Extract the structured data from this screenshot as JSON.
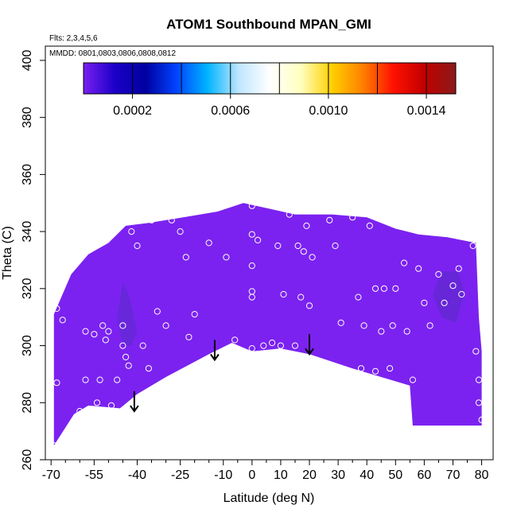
{
  "chart_data": {
    "type": "heatmap",
    "title": "ATOM1 Southbound MPAN_GMI",
    "subtitle_lines": [
      "Flts: 2,3,4,5,6",
      "MMDD: 0801,0803,0806,0808,0812"
    ],
    "xlabel": "Latitude (deg N)",
    "ylabel": "Theta (C)",
    "xlim": [
      -72,
      84
    ],
    "ylim": [
      260,
      405
    ],
    "x_ticks": [
      -70,
      -55,
      -40,
      -25,
      -10,
      0,
      10,
      20,
      30,
      40,
      50,
      60,
      70,
      80
    ],
    "x_minor_ticks": [
      -65,
      -60,
      -50,
      -45,
      -35,
      -30,
      -20,
      -15,
      -5,
      5,
      15,
      25,
      35,
      45,
      55,
      65,
      75
    ],
    "y_ticks": [
      260,
      280,
      300,
      320,
      340,
      360,
      380,
      400
    ],
    "colorbar": {
      "range": [
        0.0,
        0.00152
      ],
      "ticks": [
        "0.0002",
        "0.0006",
        "0.0010",
        "0.0014"
      ],
      "tick_values": [
        0.0002,
        0.0006,
        0.001,
        0.0014
      ],
      "segment_edges": [
        0.0002,
        0.0004,
        0.0006,
        0.0008,
        0.001,
        0.0012,
        0.0014
      ],
      "colors": [
        "#7a1ff0",
        "#1c00c8",
        "#0000a0",
        "#0044ff",
        "#00b4ff",
        "#bfe6ff",
        "#ffffff",
        "#ffffc0",
        "#ffd000",
        "#ff8000",
        "#ff1000",
        "#c00000",
        "#8b1a1a"
      ]
    },
    "field_color": "#7b22f0",
    "field_dark_color": "#5a2bc8",
    "field_boundary": {
      "upper": [
        [
          -69,
          311
        ],
        [
          -63,
          325
        ],
        [
          -57,
          332
        ],
        [
          -50,
          336
        ],
        [
          -44,
          342
        ],
        [
          -36,
          343
        ],
        [
          -24,
          345
        ],
        [
          -12,
          347
        ],
        [
          -3,
          350
        ],
        [
          6,
          348
        ],
        [
          15,
          346
        ],
        [
          28,
          346
        ],
        [
          40,
          345
        ],
        [
          50,
          341
        ],
        [
          58,
          339
        ],
        [
          68,
          338
        ],
        [
          78,
          336
        ],
        [
          79,
          310
        ],
        [
          80,
          298
        ]
      ],
      "lower": [
        [
          80,
          272
        ],
        [
          56,
          272
        ],
        [
          55,
          286
        ],
        [
          35,
          292
        ],
        [
          20,
          297
        ],
        [
          10,
          299
        ],
        [
          0,
          298
        ],
        [
          -7,
          301
        ],
        [
          -15,
          297
        ],
        [
          -30,
          289
        ],
        [
          -40,
          283
        ],
        [
          -46,
          278
        ],
        [
          -57,
          279
        ],
        [
          -62,
          276
        ],
        [
          -69,
          265
        ]
      ]
    },
    "sample_points": [
      [
        -69,
        265
      ],
      [
        -68,
        287
      ],
      [
        -68,
        313
      ],
      [
        -66,
        309
      ],
      [
        -60,
        277
      ],
      [
        -58,
        288
      ],
      [
        -58,
        305
      ],
      [
        -55,
        304
      ],
      [
        -54,
        280
      ],
      [
        -53,
        288
      ],
      [
        -52,
        307
      ],
      [
        -51,
        302
      ],
      [
        -50,
        305
      ],
      [
        -49,
        279
      ],
      [
        -47,
        288
      ],
      [
        -45,
        307
      ],
      [
        -45,
        300
      ],
      [
        -44,
        296
      ],
      [
        -43,
        293
      ],
      [
        -42,
        340
      ],
      [
        -41,
        278
      ],
      [
        -40,
        335
      ],
      [
        -38,
        300
      ],
      [
        -36,
        292
      ],
      [
        -35,
        344
      ],
      [
        -33,
        312
      ],
      [
        -30,
        307
      ],
      [
        -28,
        344
      ],
      [
        -25,
        340
      ],
      [
        -23,
        331
      ],
      [
        -22,
        303
      ],
      [
        -20,
        292
      ],
      [
        -20,
        311
      ],
      [
        -17,
        348
      ],
      [
        -15,
        336
      ],
      [
        -13,
        295
      ],
      [
        -9,
        331
      ],
      [
        -6,
        302
      ],
      [
        -1,
        351
      ],
      [
        0,
        349
      ],
      [
        0,
        339
      ],
      [
        0,
        328
      ],
      [
        0,
        319
      ],
      [
        0,
        317
      ],
      [
        0,
        299
      ],
      [
        2,
        337
      ],
      [
        4,
        300
      ],
      [
        7,
        301
      ],
      [
        9,
        335
      ],
      [
        10,
        300
      ],
      [
        11,
        318
      ],
      [
        13,
        346
      ],
      [
        15,
        300
      ],
      [
        16,
        335
      ],
      [
        17,
        317
      ],
      [
        18,
        333
      ],
      [
        19,
        342
      ],
      [
        20,
        314
      ],
      [
        21,
        331
      ],
      [
        27,
        344
      ],
      [
        29,
        335
      ],
      [
        31,
        308
      ],
      [
        35,
        345
      ],
      [
        37,
        317
      ],
      [
        38,
        292
      ],
      [
        39,
        307
      ],
      [
        41,
        342
      ],
      [
        43,
        320
      ],
      [
        43,
        291
      ],
      [
        45,
        305
      ],
      [
        46,
        320
      ],
      [
        48,
        292
      ],
      [
        49,
        307
      ],
      [
        50,
        320
      ],
      [
        53,
        329
      ],
      [
        54,
        305
      ],
      [
        56,
        288
      ],
      [
        58,
        327
      ],
      [
        60,
        315
      ],
      [
        62,
        307
      ],
      [
        65,
        325
      ],
      [
        67,
        315
      ],
      [
        70,
        321
      ],
      [
        72,
        327
      ],
      [
        73,
        318
      ],
      [
        77,
        335
      ],
      [
        78,
        298
      ],
      [
        79,
        288
      ],
      [
        79,
        280
      ],
      [
        80,
        274
      ]
    ],
    "arrows": [
      [
        -41,
        284,
        277
      ],
      [
        -13,
        302,
        295
      ],
      [
        20,
        304,
        297
      ]
    ]
  }
}
